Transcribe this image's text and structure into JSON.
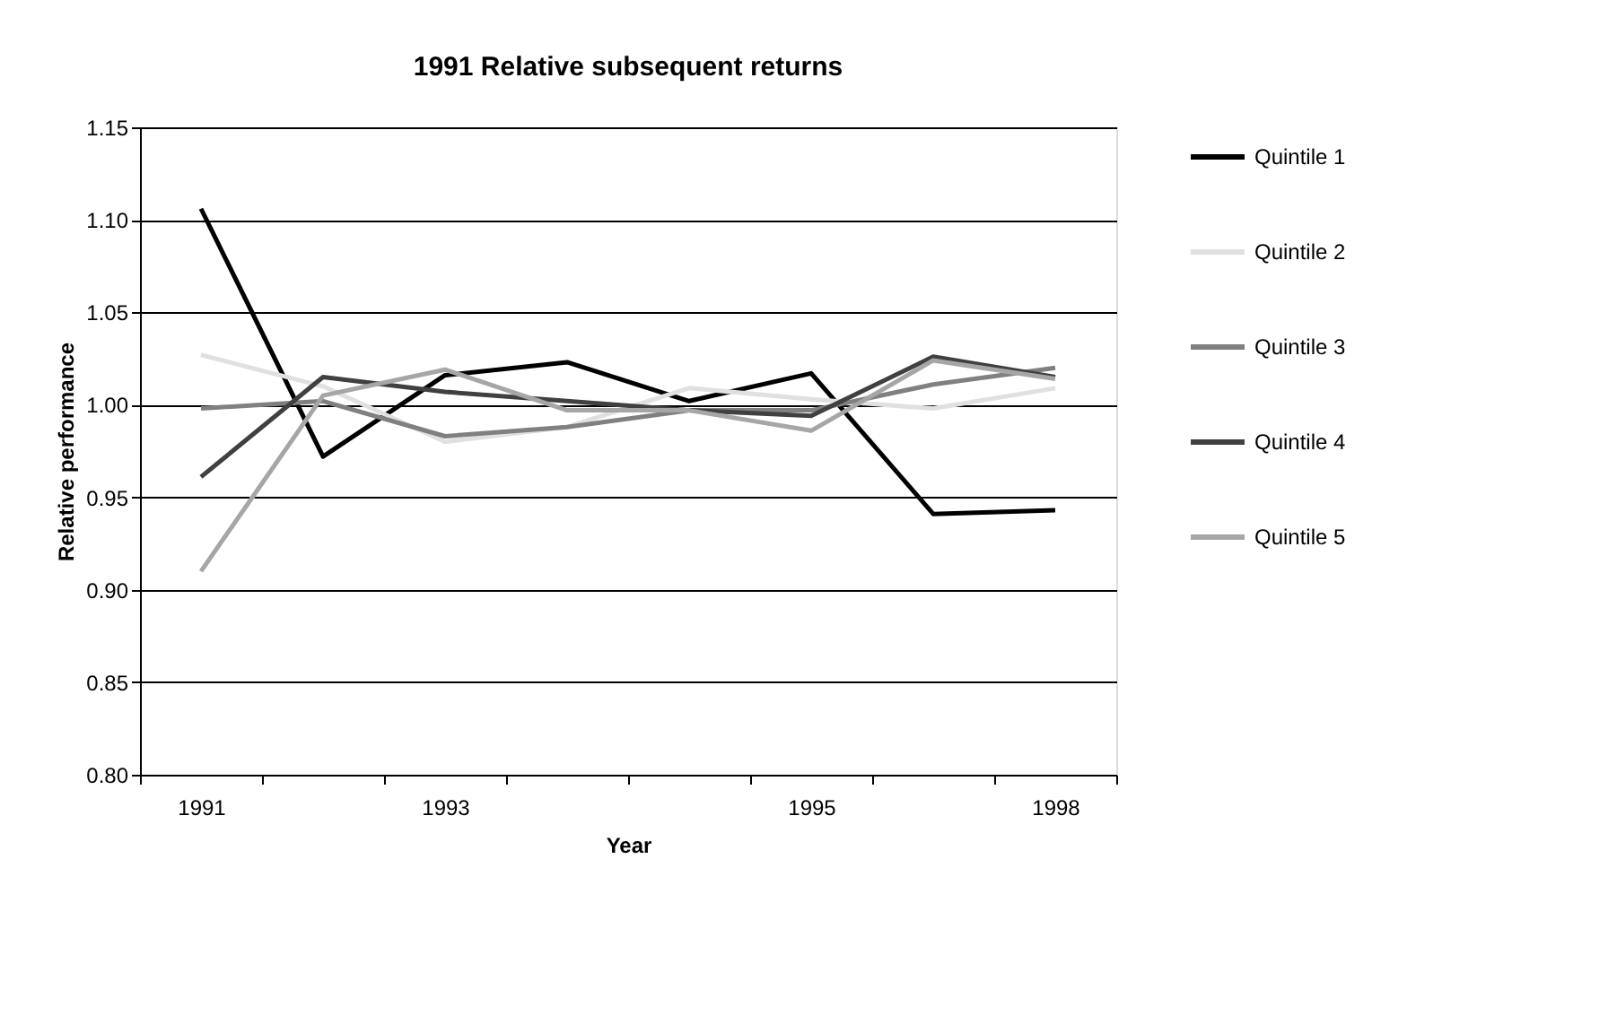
{
  "chart_data": {
    "type": "line",
    "title": "1991 Relative subsequent returns",
    "xlabel": "Year",
    "ylabel": "Relative performance",
    "categories": [
      "1991",
      null,
      "1993",
      null,
      null,
      "1995",
      null,
      "1998"
    ],
    "series": [
      {
        "name": "Quintile 1",
        "color": "#000000",
        "values": [
          1.106,
          0.972,
          1.016,
          1.023,
          1.002,
          1.017,
          0.941,
          0.943
        ]
      },
      {
        "name": "Quintile 2",
        "color": "#e0e0e0",
        "values": [
          1.027,
          1.01,
          0.98,
          0.988,
          1.009,
          1.003,
          0.998,
          1.009
        ]
      },
      {
        "name": "Quintile 3",
        "color": "#808080",
        "values": [
          0.998,
          1.002,
          0.983,
          0.988,
          0.997,
          0.997,
          1.011,
          1.02
        ]
      },
      {
        "name": "Quintile 4",
        "color": "#404040",
        "values": [
          0.961,
          1.015,
          1.007,
          1.002,
          0.997,
          0.994,
          1.026,
          1.015
        ]
      },
      {
        "name": "Quintile 5",
        "color": "#a6a6a6",
        "values": [
          0.91,
          1.005,
          1.019,
          0.997,
          0.997,
          0.986,
          1.024,
          1.014
        ]
      }
    ],
    "ylim": [
      0.8,
      1.15
    ],
    "yticks": [
      {
        "value": 0.8,
        "label": "0.80"
      },
      {
        "value": 0.85,
        "label": "0.85"
      },
      {
        "value": 0.9,
        "label": "0.90"
      },
      {
        "value": 0.95,
        "label": "0.95"
      },
      {
        "value": 1.0,
        "label": "1.00"
      },
      {
        "value": 1.05,
        "label": "1.05"
      },
      {
        "value": 1.1,
        "label": "1.10"
      },
      {
        "value": 1.15,
        "label": "1.15"
      }
    ],
    "grid": "y",
    "legend": "right",
    "marker": "none",
    "line_style": "solid"
  }
}
